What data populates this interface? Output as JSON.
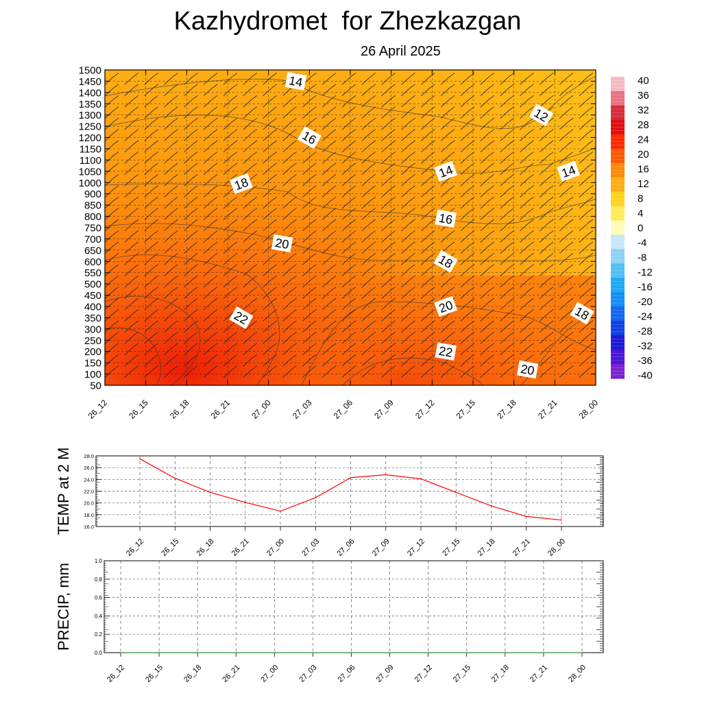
{
  "title": "Kazhydromet  for Zhezkazgan",
  "subtitle": "26 April 2025",
  "chart_data": [
    {
      "type": "heatmap",
      "name": "temperature cross-section",
      "x_labels": [
        "26_12",
        "26_15",
        "26_18",
        "26_21",
        "27_00",
        "27_03",
        "27_06",
        "27_09",
        "27_12",
        "27_15",
        "27_18",
        "27_21",
        "28_00"
      ],
      "y_ticks": [
        50,
        100,
        150,
        200,
        250,
        300,
        350,
        400,
        450,
        500,
        550,
        600,
        650,
        700,
        750,
        800,
        850,
        900,
        1000,
        1050,
        1100,
        1150,
        1200,
        1250,
        1300,
        1350,
        1400,
        1450,
        1500
      ],
      "colorbar": {
        "labels": [
          "40",
          "36",
          "32",
          "28",
          "24",
          "20",
          "16",
          "12",
          "8",
          "4",
          "0",
          "-4",
          "-8",
          "-12",
          "-16",
          "-20",
          "-24",
          "-28",
          "-32",
          "-36",
          "-40"
        ],
        "colors": [
          "#f6b9c2",
          "#e8737f",
          "#d92c3a",
          "#e00f10",
          "#fc2a02",
          "#fd5a06",
          "#fd8a0a",
          "#ffad14",
          "#ffd21f",
          "#ffeb59",
          "#fffcb8",
          "#c8e6f8",
          "#8dd2f5",
          "#52bff3",
          "#1fa9f3",
          "#168ef5",
          "#1466ee",
          "#1240e6",
          "#1e18d8",
          "#4d16d6",
          "#7a22d2"
        ]
      },
      "grid": true,
      "contour_labels": [
        {
          "value": "14",
          "x": "27_02",
          "y": 1450
        },
        {
          "value": "16",
          "x": "27_03",
          "y": 1200
        },
        {
          "value": "18",
          "x": "26_22",
          "y": 990
        },
        {
          "value": "20",
          "x": "27_01",
          "y": 680
        },
        {
          "value": "22",
          "x": "26_22",
          "y": 350
        },
        {
          "value": "14",
          "x": "27_13",
          "y": 1050
        },
        {
          "value": "16",
          "x": "27_13",
          "y": 790
        },
        {
          "value": "18",
          "x": "27_13",
          "y": 600
        },
        {
          "value": "20",
          "x": "27_13",
          "y": 400
        },
        {
          "value": "22",
          "x": "27_13",
          "y": 200
        },
        {
          "value": "12",
          "x": "27_20",
          "y": 1300
        },
        {
          "value": "14",
          "x": "27_22",
          "y": 1050
        },
        {
          "value": "20",
          "x": "27_19",
          "y": 120
        },
        {
          "value": "18",
          "x": "27_23",
          "y": 370
        }
      ]
    },
    {
      "type": "line",
      "ylabel": "TEMP at 2 M",
      "categories": [
        "26_12",
        "26_15",
        "26_18",
        "26_21",
        "27_00",
        "27_03",
        "27_06",
        "27_09",
        "27_12",
        "27_15",
        "27_18",
        "27_21",
        "28_00"
      ],
      "values": [
        27.5,
        24.2,
        21.8,
        20.1,
        18.6,
        20.9,
        24.3,
        24.8,
        24.1,
        21.8,
        19.5,
        17.7,
        17.1
      ],
      "ylim": [
        16,
        28
      ],
      "y_ticks": [
        "28.0",
        "26.0",
        "24.0",
        "22.0",
        "20.0",
        "18.0",
        "16.0"
      ],
      "line_color": "#ff0000",
      "grid": true
    },
    {
      "type": "line",
      "ylabel": "PRECIP, mm",
      "categories": [
        "26_12",
        "26_15",
        "26_18",
        "26_21",
        "27_00",
        "27_03",
        "27_06",
        "27_09",
        "27_12",
        "27_15",
        "27_18",
        "27_21",
        "28_00"
      ],
      "values": [
        0,
        0,
        0,
        0,
        0,
        0,
        0,
        0,
        0,
        0,
        0,
        0,
        0
      ],
      "ylim": [
        0,
        1
      ],
      "y_ticks": [
        "1.0",
        "0.8",
        "0.6",
        "0.4",
        "0.2",
        "0.0"
      ],
      "line_color": "#2e8b2e",
      "grid": true
    }
  ]
}
